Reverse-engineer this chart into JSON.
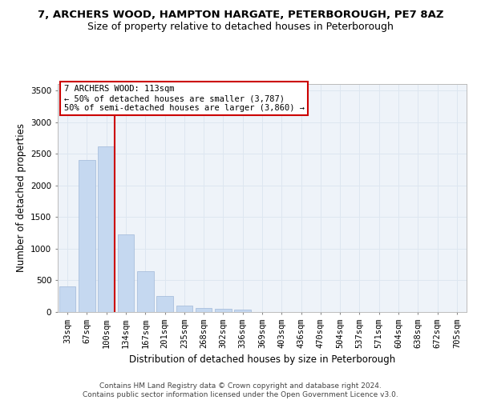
{
  "title_line1": "7, ARCHERS WOOD, HAMPTON HARGATE, PETERBOROUGH, PE7 8AZ",
  "title_line2": "Size of property relative to detached houses in Peterborough",
  "xlabel": "Distribution of detached houses by size in Peterborough",
  "ylabel": "Number of detached properties",
  "categories": [
    "33sqm",
    "67sqm",
    "100sqm",
    "134sqm",
    "167sqm",
    "201sqm",
    "235sqm",
    "268sqm",
    "302sqm",
    "336sqm",
    "369sqm",
    "403sqm",
    "436sqm",
    "470sqm",
    "504sqm",
    "537sqm",
    "571sqm",
    "604sqm",
    "638sqm",
    "672sqm",
    "705sqm"
  ],
  "values": [
    400,
    2400,
    2620,
    1230,
    640,
    255,
    100,
    65,
    55,
    40,
    0,
    0,
    0,
    0,
    0,
    0,
    0,
    0,
    0,
    0,
    0
  ],
  "bar_color": "#c5d8f0",
  "bar_edgecolor": "#a0b8d8",
  "vline_color": "#cc0000",
  "vline_x_index": 2,
  "annotation_text": "7 ARCHERS WOOD: 113sqm\n← 50% of detached houses are smaller (3,787)\n50% of semi-detached houses are larger (3,860) →",
  "annotation_box_color": "white",
  "annotation_box_edgecolor": "#cc0000",
  "ylim": [
    0,
    3600
  ],
  "yticks": [
    0,
    500,
    1000,
    1500,
    2000,
    2500,
    3000,
    3500
  ],
  "grid_color": "#dde6f0",
  "background_color": "#eef3f9",
  "footer_text": "Contains HM Land Registry data © Crown copyright and database right 2024.\nContains public sector information licensed under the Open Government Licence v3.0.",
  "title_fontsize": 9.5,
  "subtitle_fontsize": 9,
  "xlabel_fontsize": 8.5,
  "ylabel_fontsize": 8.5,
  "tick_fontsize": 7.5,
  "footer_fontsize": 6.5,
  "annotation_fontsize": 7.5
}
